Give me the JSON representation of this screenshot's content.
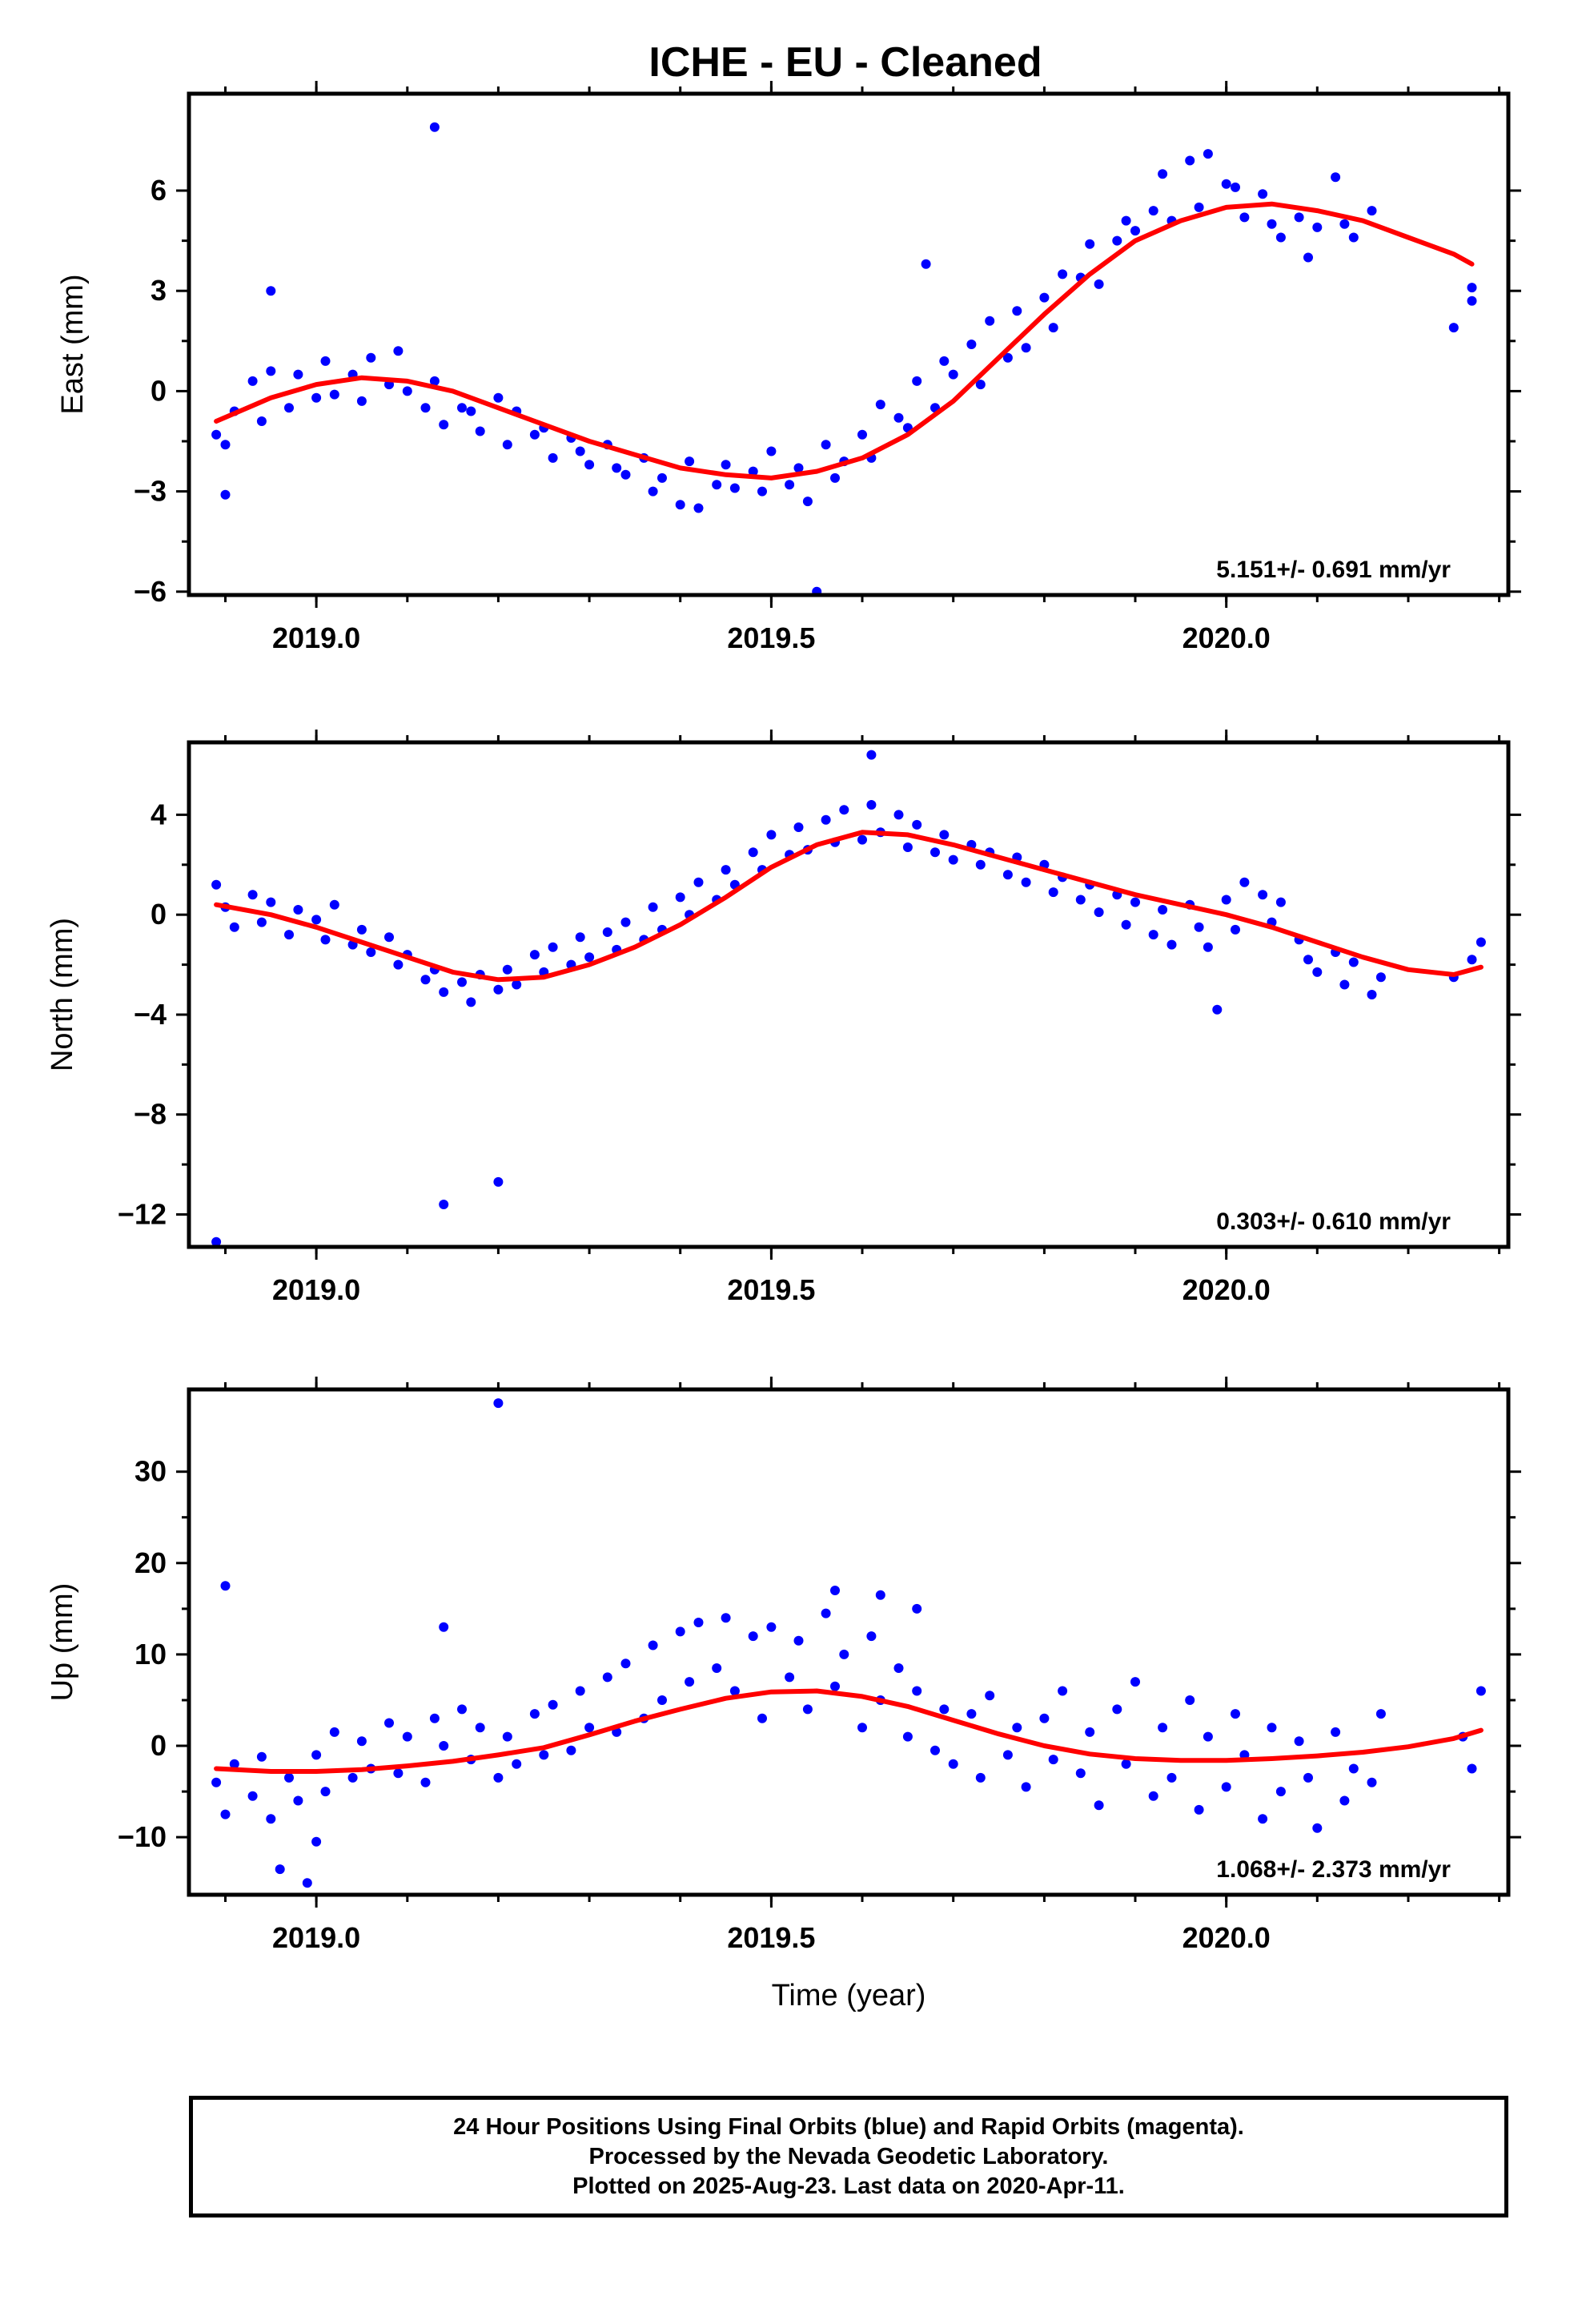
{
  "title": "ICHE  - EU - Cleaned",
  "footer": {
    "line1": "24 Hour Positions Using Final Orbits (blue) and Rapid Orbits (magenta).",
    "line2": "Processed by the Nevada Geodetic Laboratory.",
    "line3": "Plotted on 2025-Aug-23. Last data on 2020-Apr-11."
  },
  "colors": {
    "points": "#0000ff",
    "fit": "#ff0000",
    "axes": "#000000"
  },
  "chart_data": [
    {
      "type": "scatter",
      "ylabel": "East (mm)",
      "xlabel": "",
      "xlim": [
        2018.86,
        2020.31
      ],
      "ylim": [
        -6.1,
        8.9
      ],
      "xticks": [
        2019.0,
        2019.5,
        2020.0
      ],
      "xtick_labels": [
        "2019.0",
        "2019.5",
        "2020.0"
      ],
      "yticks": [
        -6,
        -3,
        0,
        3,
        6
      ],
      "ytick_labels": [
        "−6",
        "−3",
        "0",
        "3",
        "6"
      ],
      "rate_label": "5.151+/- 0.691 mm/yr",
      "series": [
        {
          "kind": "points",
          "x": [
            2018.89,
            2018.9,
            2018.91,
            2018.93,
            2018.94,
            2018.95,
            2018.97,
            2018.98,
            2019.0,
            2019.01,
            2019.02,
            2019.04,
            2019.05,
            2019.06,
            2019.08,
            2019.09,
            2019.1,
            2019.12,
            2019.13,
            2019.14,
            2019.16,
            2019.17,
            2019.18,
            2019.2,
            2019.21,
            2019.22,
            2019.24,
            2019.25,
            2019.26,
            2019.28,
            2019.29,
            2019.3,
            2019.32,
            2019.33,
            2019.34,
            2019.36,
            2019.37,
            2019.38,
            2019.4,
            2019.41,
            2019.42,
            2019.44,
            2019.45,
            2019.46,
            2019.48,
            2019.49,
            2019.5,
            2019.52,
            2019.53,
            2019.54,
            2019.56,
            2019.57,
            2019.58,
            2019.6,
            2019.61,
            2019.62,
            2019.64,
            2019.65,
            2019.66,
            2019.68,
            2019.69,
            2019.7,
            2019.72,
            2019.73,
            2019.74,
            2019.76,
            2019.77,
            2019.78,
            2019.8,
            2019.81,
            2019.82,
            2019.84,
            2019.85,
            2019.86,
            2019.88,
            2019.89,
            2019.9,
            2019.92,
            2019.93,
            2019.94,
            2019.96,
            2019.97,
            2019.98,
            2020.0,
            2020.01,
            2020.02,
            2020.04,
            2020.05,
            2020.06,
            2020.08,
            2020.09,
            2020.1,
            2020.12,
            2020.13,
            2020.14,
            2020.16,
            2020.25,
            2020.27,
            2020.27
          ],
          "y": [
            -1.3,
            -1.6,
            -0.6,
            0.3,
            -0.9,
            0.6,
            -0.5,
            0.5,
            -0.2,
            0.9,
            -0.1,
            0.5,
            -0.3,
            1.0,
            0.2,
            1.2,
            0.0,
            -0.5,
            0.3,
            -1.0,
            -0.5,
            -0.6,
            -1.2,
            -0.2,
            -1.6,
            -0.6,
            -1.3,
            -1.1,
            -2.0,
            -1.4,
            -1.8,
            -2.2,
            -1.6,
            -2.3,
            -2.5,
            -2.0,
            -3.0,
            -2.6,
            -3.4,
            -2.1,
            -3.5,
            -2.8,
            -2.2,
            -2.9,
            -2.4,
            -3.0,
            -1.8,
            -2.8,
            -2.3,
            -3.3,
            -1.6,
            -2.6,
            -2.1,
            -1.3,
            -2.0,
            -0.4,
            -0.8,
            -1.1,
            0.3,
            -0.5,
            0.9,
            0.5,
            1.4,
            0.2,
            2.1,
            1.0,
            2.4,
            1.3,
            2.8,
            1.9,
            3.5,
            3.4,
            4.4,
            3.2,
            4.5,
            5.1,
            4.8,
            5.4,
            6.5,
            5.1,
            6.9,
            5.5,
            7.1,
            6.2,
            6.1,
            5.2,
            5.9,
            5.0,
            4.6,
            5.2,
            4.0,
            4.9,
            6.4,
            5.0,
            4.6,
            5.4,
            1.9,
            3.1,
            2.7
          ]
        },
        {
          "kind": "outliers",
          "x": [
            2018.9,
            2018.95,
            2019.13,
            2019.55,
            2019.67
          ],
          "y": [
            -3.1,
            3.0,
            7.9,
            -6.0,
            3.8
          ]
        },
        {
          "kind": "fit",
          "x": [
            2018.89,
            2018.95,
            2019.0,
            2019.05,
            2019.1,
            2019.15,
            2019.2,
            2019.25,
            2019.3,
            2019.35,
            2019.4,
            2019.45,
            2019.5,
            2019.55,
            2019.6,
            2019.65,
            2019.7,
            2019.75,
            2019.8,
            2019.85,
            2019.9,
            2019.95,
            2020.0,
            2020.05,
            2020.1,
            2020.15,
            2020.2,
            2020.25,
            2020.27
          ],
          "y": [
            -0.9,
            -0.2,
            0.2,
            0.4,
            0.3,
            0.0,
            -0.5,
            -1.0,
            -1.5,
            -1.9,
            -2.3,
            -2.5,
            -2.6,
            -2.4,
            -2.0,
            -1.3,
            -0.3,
            1.0,
            2.3,
            3.5,
            4.5,
            5.1,
            5.5,
            5.6,
            5.4,
            5.1,
            4.6,
            4.1,
            3.8
          ]
        }
      ]
    },
    {
      "type": "scatter",
      "ylabel": "North (mm)",
      "xlabel": "",
      "xlim": [
        2018.86,
        2020.31
      ],
      "ylim": [
        -13.3,
        6.9
      ],
      "xticks": [
        2019.0,
        2019.5,
        2020.0
      ],
      "xtick_labels": [
        "2019.0",
        "2019.5",
        "2020.0"
      ],
      "yticks": [
        -12,
        -8,
        -4,
        0,
        4
      ],
      "ytick_labels": [
        "−12",
        "−8",
        "−4",
        "0",
        "4"
      ],
      "rate_label": "0.303+/- 0.610 mm/yr",
      "series": [
        {
          "kind": "points",
          "x": [
            2018.89,
            2018.9,
            2018.91,
            2018.93,
            2018.94,
            2018.95,
            2018.97,
            2018.98,
            2019.0,
            2019.01,
            2019.02,
            2019.04,
            2019.05,
            2019.06,
            2019.08,
            2019.09,
            2019.1,
            2019.12,
            2019.13,
            2019.14,
            2019.16,
            2019.17,
            2019.18,
            2019.2,
            2019.21,
            2019.22,
            2019.24,
            2019.25,
            2019.26,
            2019.28,
            2019.29,
            2019.3,
            2019.32,
            2019.33,
            2019.34,
            2019.36,
            2019.37,
            2019.38,
            2019.4,
            2019.41,
            2019.42,
            2019.44,
            2019.45,
            2019.46,
            2019.48,
            2019.49,
            2019.5,
            2019.52,
            2019.53,
            2019.54,
            2019.56,
            2019.57,
            2019.58,
            2019.6,
            2019.61,
            2019.62,
            2019.64,
            2019.65,
            2019.66,
            2019.68,
            2019.69,
            2019.7,
            2019.72,
            2019.73,
            2019.74,
            2019.76,
            2019.77,
            2019.78,
            2019.8,
            2019.81,
            2019.82,
            2019.84,
            2019.85,
            2019.86,
            2019.88,
            2019.89,
            2019.9,
            2019.92,
            2019.93,
            2019.94,
            2019.96,
            2019.97,
            2019.98,
            2020.0,
            2020.01,
            2020.02,
            2020.04,
            2020.05,
            2020.06,
            2020.08,
            2020.09,
            2020.1,
            2020.12,
            2020.13,
            2020.14,
            2020.16,
            2020.17,
            2020.25,
            2020.27,
            2020.28
          ],
          "y": [
            1.2,
            0.3,
            -0.5,
            0.8,
            -0.3,
            0.5,
            -0.8,
            0.2,
            -0.2,
            -1.0,
            0.4,
            -1.2,
            -0.6,
            -1.5,
            -0.9,
            -2.0,
            -1.6,
            -2.6,
            -2.2,
            -3.1,
            -2.7,
            -3.5,
            -2.4,
            -3.0,
            -2.2,
            -2.8,
            -1.6,
            -2.3,
            -1.3,
            -2.0,
            -0.9,
            -1.7,
            -0.7,
            -1.4,
            -0.3,
            -1.0,
            0.3,
            -0.6,
            0.7,
            0.0,
            1.3,
            0.6,
            1.8,
            1.2,
            2.5,
            1.8,
            3.2,
            2.4,
            3.5,
            2.6,
            3.8,
            2.9,
            4.2,
            3.0,
            4.4,
            3.3,
            4.0,
            2.7,
            3.6,
            2.5,
            3.2,
            2.2,
            2.8,
            2.0,
            2.5,
            1.6,
            2.3,
            1.3,
            2.0,
            0.9,
            1.5,
            0.6,
            1.2,
            0.1,
            0.8,
            -0.4,
            0.5,
            -0.8,
            0.2,
            -1.2,
            0.4,
            -0.5,
            -1.3,
            0.6,
            -0.6,
            1.3,
            0.8,
            -0.3,
            0.5,
            -1.0,
            -1.8,
            -2.3,
            -1.5,
            -2.8,
            -1.9,
            -3.2,
            -2.5,
            -2.5,
            -1.8,
            -1.1
          ]
        },
        {
          "kind": "outliers",
          "x": [
            2018.89,
            2019.14,
            2019.2,
            2019.61,
            2019.99
          ],
          "y": [
            -13.1,
            -11.6,
            -10.7,
            6.4,
            -3.8
          ]
        },
        {
          "kind": "fit",
          "x": [
            2018.89,
            2018.95,
            2019.0,
            2019.05,
            2019.1,
            2019.15,
            2019.2,
            2019.25,
            2019.3,
            2019.35,
            2019.4,
            2019.45,
            2019.5,
            2019.55,
            2019.6,
            2019.65,
            2019.7,
            2019.75,
            2019.8,
            2019.85,
            2019.9,
            2019.95,
            2020.0,
            2020.05,
            2020.1,
            2020.15,
            2020.2,
            2020.25,
            2020.28
          ],
          "y": [
            0.4,
            0.0,
            -0.5,
            -1.1,
            -1.7,
            -2.3,
            -2.6,
            -2.5,
            -2.0,
            -1.3,
            -0.4,
            0.7,
            1.9,
            2.8,
            3.3,
            3.2,
            2.8,
            2.3,
            1.8,
            1.3,
            0.8,
            0.4,
            0.0,
            -0.5,
            -1.1,
            -1.7,
            -2.2,
            -2.4,
            -2.1
          ]
        }
      ]
    },
    {
      "type": "scatter",
      "ylabel": "Up (mm)",
      "xlabel": "Time (year)",
      "xlim": [
        2018.86,
        2020.31
      ],
      "ylim": [
        -16.3,
        39.0
      ],
      "xticks": [
        2019.0,
        2019.5,
        2020.0
      ],
      "xtick_labels": [
        "2019.0",
        "2019.5",
        "2020.0"
      ],
      "yticks": [
        -10,
        0,
        10,
        20,
        30
      ],
      "ytick_labels": [
        "−10",
        "0",
        "10",
        "20",
        "30"
      ],
      "rate_label": "1.068+/- 2.373 mm/yr",
      "series": [
        {
          "kind": "points",
          "x": [
            2018.89,
            2018.9,
            2018.91,
            2018.93,
            2018.94,
            2018.95,
            2018.97,
            2018.98,
            2019.0,
            2019.01,
            2019.02,
            2019.04,
            2019.05,
            2019.06,
            2019.08,
            2019.09,
            2019.1,
            2019.12,
            2019.13,
            2019.14,
            2019.16,
            2019.17,
            2019.18,
            2019.2,
            2019.21,
            2019.22,
            2019.24,
            2019.25,
            2019.26,
            2019.28,
            2019.29,
            2019.3,
            2019.32,
            2019.33,
            2019.34,
            2019.36,
            2019.37,
            2019.38,
            2019.4,
            2019.41,
            2019.42,
            2019.44,
            2019.45,
            2019.46,
            2019.48,
            2019.49,
            2019.5,
            2019.52,
            2019.53,
            2019.54,
            2019.56,
            2019.57,
            2019.58,
            2019.6,
            2019.61,
            2019.62,
            2019.64,
            2019.65,
            2019.66,
            2019.68,
            2019.69,
            2019.7,
            2019.72,
            2019.73,
            2019.74,
            2019.76,
            2019.77,
            2019.78,
            2019.8,
            2019.81,
            2019.82,
            2019.84,
            2019.85,
            2019.86,
            2019.88,
            2019.89,
            2019.9,
            2019.92,
            2019.93,
            2019.94,
            2019.96,
            2019.97,
            2019.98,
            2020.0,
            2020.01,
            2020.02,
            2020.04,
            2020.05,
            2020.06,
            2020.08,
            2020.09,
            2020.1,
            2020.12,
            2020.13,
            2020.14,
            2020.16,
            2020.17,
            2020.26,
            2020.27,
            2020.28
          ],
          "y": [
            -4.0,
            -7.5,
            -2.0,
            -5.5,
            -1.2,
            -8.0,
            -3.5,
            -6.0,
            -1.0,
            -5.0,
            1.5,
            -3.5,
            0.5,
            -2.5,
            2.5,
            -3.0,
            1.0,
            -4.0,
            3.0,
            0.0,
            4.0,
            -1.5,
            2.0,
            -3.5,
            1.0,
            -2.0,
            3.5,
            -1.0,
            4.5,
            -0.5,
            6.0,
            2.0,
            7.5,
            1.5,
            9.0,
            3.0,
            11.0,
            5.0,
            12.5,
            7.0,
            13.5,
            8.5,
            14.0,
            6.0,
            12.0,
            3.0,
            13.0,
            7.5,
            11.5,
            4.0,
            14.5,
            6.5,
            10.0,
            2.0,
            12.0,
            5.0,
            8.5,
            1.0,
            6.0,
            -0.5,
            4.0,
            -2.0,
            3.5,
            -3.5,
            5.5,
            -1.0,
            2.0,
            -4.5,
            3.0,
            -1.5,
            6.0,
            -3.0,
            1.5,
            -6.5,
            4.0,
            -2.0,
            7.0,
            -5.5,
            2.0,
            -3.5,
            5.0,
            -7.0,
            1.0,
            -4.5,
            3.5,
            -1.0,
            -8.0,
            2.0,
            -5.0,
            0.5,
            -3.5,
            -9.0,
            1.5,
            -6.0,
            -2.5,
            -4.0,
            3.5,
            1.0,
            -2.5,
            6.0
          ]
        },
        {
          "kind": "outliers",
          "x": [
            2018.9,
            2018.96,
            2018.99,
            2019.0,
            2019.14,
            2019.2,
            2019.57,
            2019.62,
            2019.66
          ],
          "y": [
            17.5,
            -13.5,
            -15.0,
            -10.5,
            13.0,
            37.5,
            17.0,
            16.5,
            15.0
          ]
        },
        {
          "kind": "fit",
          "x": [
            2018.89,
            2018.95,
            2019.0,
            2019.05,
            2019.1,
            2019.15,
            2019.2,
            2019.25,
            2019.3,
            2019.35,
            2019.4,
            2019.45,
            2019.5,
            2019.55,
            2019.6,
            2019.65,
            2019.7,
            2019.75,
            2019.8,
            2019.85,
            2019.9,
            2019.95,
            2020.0,
            2020.05,
            2020.1,
            2020.15,
            2020.2,
            2020.25,
            2020.28
          ],
          "y": [
            -2.5,
            -2.8,
            -2.8,
            -2.6,
            -2.2,
            -1.7,
            -1.0,
            -0.2,
            1.2,
            2.7,
            4.0,
            5.2,
            5.9,
            6.0,
            5.4,
            4.3,
            2.8,
            1.3,
            0.0,
            -0.9,
            -1.4,
            -1.6,
            -1.6,
            -1.4,
            -1.1,
            -0.7,
            -0.1,
            0.8,
            1.7
          ]
        }
      ]
    }
  ]
}
